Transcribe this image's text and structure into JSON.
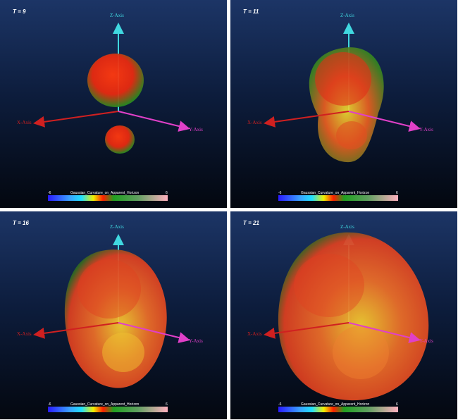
{
  "panels": [
    {
      "time_label": "T = 9"
    },
    {
      "time_label": "T = 11"
    },
    {
      "time_label": "T = 16"
    },
    {
      "time_label": "T = 21"
    }
  ],
  "axes": {
    "x": "X-Axis",
    "y": "Y-Axis",
    "z": "Z-Axis"
  },
  "colorbar": {
    "title": "Gaussian_Curvature_on_Apparent_Horizon",
    "min": "-6",
    "max": "6"
  },
  "colors": {
    "x_axis": "#cc1a1a",
    "y_axis": "#e040c8",
    "z_axis": "#40d8e0"
  }
}
